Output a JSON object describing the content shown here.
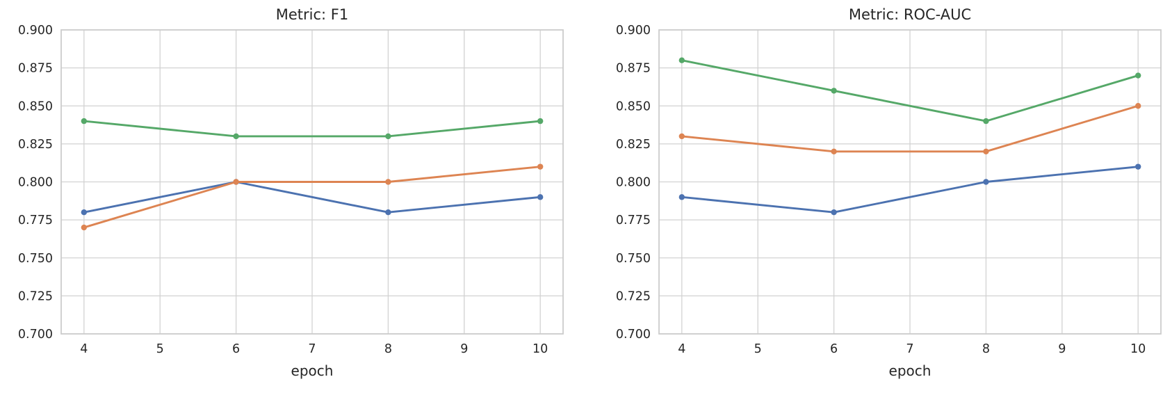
{
  "theme": {
    "background": "#ffffff",
    "grid_color": "#d2d2d2",
    "spine_color": "#cccccc",
    "text_color": "#262626"
  },
  "chart_data": [
    {
      "type": "line",
      "title": "Metric: F1",
      "xlabel": "epoch",
      "ylabel": "",
      "x": [
        4,
        6,
        8,
        10
      ],
      "series": [
        {
          "name": "blue-series",
          "color": "#4C72B0",
          "values": [
            0.78,
            0.8,
            0.78,
            0.79
          ]
        },
        {
          "name": "orange-series",
          "color": "#DD8452",
          "values": [
            0.77,
            0.8,
            0.8,
            0.81
          ]
        },
        {
          "name": "green-series",
          "color": "#55A868",
          "values": [
            0.84,
            0.83,
            0.83,
            0.84
          ]
        }
      ],
      "xlim": [
        3.7,
        10.3
      ],
      "ylim": [
        0.7,
        0.9
      ],
      "xticks": {
        "values": [
          4,
          5,
          6,
          7,
          8,
          9,
          10
        ],
        "labels": [
          "4",
          "5",
          "6",
          "7",
          "8",
          "9",
          "10"
        ]
      },
      "yticks": {
        "values": [
          0.7,
          0.725,
          0.75,
          0.775,
          0.8,
          0.825,
          0.85,
          0.875,
          0.9
        ],
        "labels": [
          "0.700",
          "0.725",
          "0.750",
          "0.775",
          "0.800",
          "0.825",
          "0.850",
          "0.875",
          "0.900"
        ]
      },
      "grid": true,
      "legend": "none",
      "markers": "circle"
    },
    {
      "type": "line",
      "title": "Metric: ROC-AUC",
      "xlabel": "epoch",
      "ylabel": "",
      "x": [
        4,
        6,
        8,
        10
      ],
      "series": [
        {
          "name": "blue-series",
          "color": "#4C72B0",
          "values": [
            0.79,
            0.78,
            0.8,
            0.81
          ]
        },
        {
          "name": "orange-series",
          "color": "#DD8452",
          "values": [
            0.83,
            0.82,
            0.82,
            0.85
          ]
        },
        {
          "name": "green-series",
          "color": "#55A868",
          "values": [
            0.88,
            0.86,
            0.84,
            0.87
          ]
        }
      ],
      "xlim": [
        3.7,
        10.3
      ],
      "ylim": [
        0.7,
        0.9
      ],
      "xticks": {
        "values": [
          4,
          5,
          6,
          7,
          8,
          9,
          10
        ],
        "labels": [
          "4",
          "5",
          "6",
          "7",
          "8",
          "9",
          "10"
        ]
      },
      "yticks": {
        "values": [
          0.7,
          0.725,
          0.75,
          0.775,
          0.8,
          0.825,
          0.85,
          0.875,
          0.9
        ],
        "labels": [
          "0.700",
          "0.725",
          "0.750",
          "0.775",
          "0.800",
          "0.825",
          "0.850",
          "0.875",
          "0.900"
        ]
      },
      "grid": true,
      "legend": "none",
      "markers": "circle"
    }
  ]
}
